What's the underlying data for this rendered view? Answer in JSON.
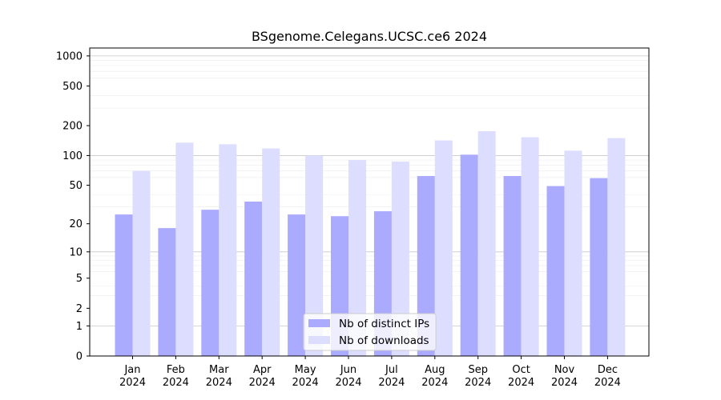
{
  "chart_data": {
    "type": "bar",
    "title": "BSgenome.Celegans.UCSC.ce6 2024",
    "xlabel": "",
    "ylabel": "",
    "yscale": "log(1+y)",
    "ylim": [
      0,
      1200
    ],
    "grid": true,
    "legend_position": "bottom-center",
    "categories": [
      "Jan\n2024",
      "Feb\n2024",
      "Mar\n2024",
      "Apr\n2024",
      "May\n2024",
      "Jun\n2024",
      "Jul\n2024",
      "Aug\n2024",
      "Sep\n2024",
      "Oct\n2024",
      "Nov\n2024",
      "Dec\n2024"
    ],
    "y_ticks": [
      0,
      1,
      2,
      5,
      10,
      20,
      50,
      100,
      200,
      500,
      1000
    ],
    "series": [
      {
        "name": "Nb of distinct IPs",
        "color": "#aaaaff",
        "values": [
          25,
          18,
          28,
          34,
          25,
          24,
          27,
          62,
          102,
          62,
          49,
          59
        ]
      },
      {
        "name": "Nb of downloads",
        "color": "#ddddff",
        "values": [
          70,
          135,
          130,
          118,
          100,
          90,
          87,
          142,
          176,
          153,
          112,
          150
        ]
      }
    ]
  }
}
